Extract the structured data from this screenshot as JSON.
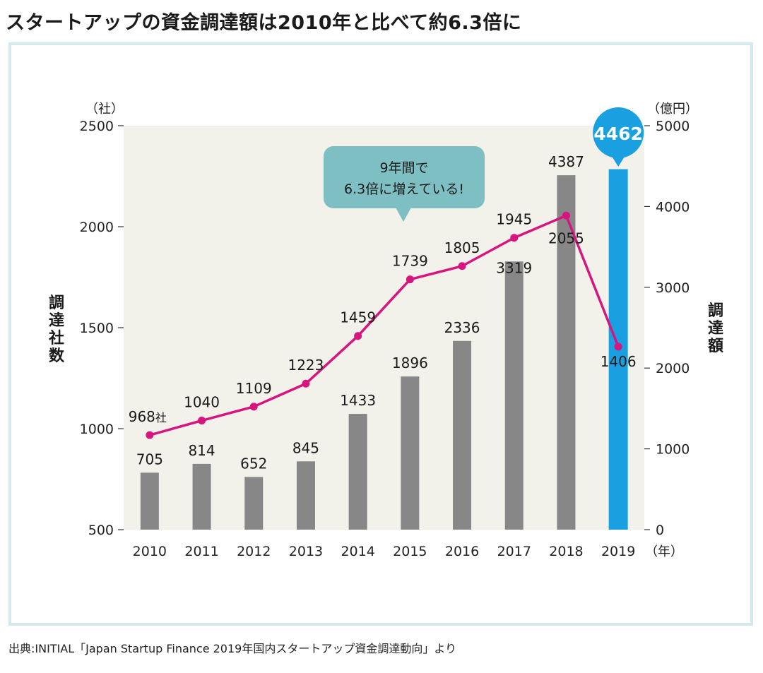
{
  "page": {
    "title": "スタートアップの資金調達額は2010年と比べて約6.3倍に",
    "source": "出典:INITIAL「Japan Startup Finance 2019年国内スタートアップ資金調達動向」より"
  },
  "colors": {
    "plot_background": "#f2f1ea",
    "bar_gray": "#878787",
    "bar_highlight": "#1aa0e0",
    "line_magenta": "#d8157f",
    "callout_teal": "#7dbfc3",
    "frame_border": "#d3e9ee"
  },
  "chart_data": {
    "type": "bar+line",
    "categories": [
      "2010",
      "2011",
      "2012",
      "2013",
      "2014",
      "2015",
      "2016",
      "2017",
      "2018",
      "2019"
    ],
    "x_unit": "（年）",
    "bars": {
      "name": "調達額",
      "axis": "right",
      "unit": "（億円）",
      "ylim": [
        0,
        5000
      ],
      "ticks": [
        "0",
        "1000",
        "2000",
        "3000",
        "4000",
        "5000"
      ],
      "values": [
        705,
        814,
        652,
        845,
        1433,
        1896,
        2336,
        3319,
        4387,
        4462
      ],
      "labels": [
        "705",
        "814",
        "652",
        "845",
        "1433",
        "1896",
        "2336",
        "3319",
        "4387",
        "4462"
      ],
      "highlight_index": 9
    },
    "line": {
      "name": "調達社数",
      "axis": "left",
      "unit": "（社）",
      "ylim": [
        500,
        2500
      ],
      "ticks": [
        "500",
        "1000",
        "1500",
        "2000",
        "2500"
      ],
      "values": [
        968,
        1040,
        1109,
        1223,
        1459,
        1739,
        1805,
        1945,
        2055,
        1406
      ],
      "labels": [
        "968",
        "1040",
        "1109",
        "1223",
        "1459",
        "1739",
        "1805",
        "1945",
        "2055",
        "1406"
      ],
      "first_label_suffix": "社"
    },
    "left_axis_title": [
      "調",
      "達",
      "社",
      "数"
    ],
    "right_axis_title": [
      "調",
      "達",
      "額"
    ],
    "callout": [
      "9年間で",
      "6.3倍に増えている!"
    ]
  }
}
